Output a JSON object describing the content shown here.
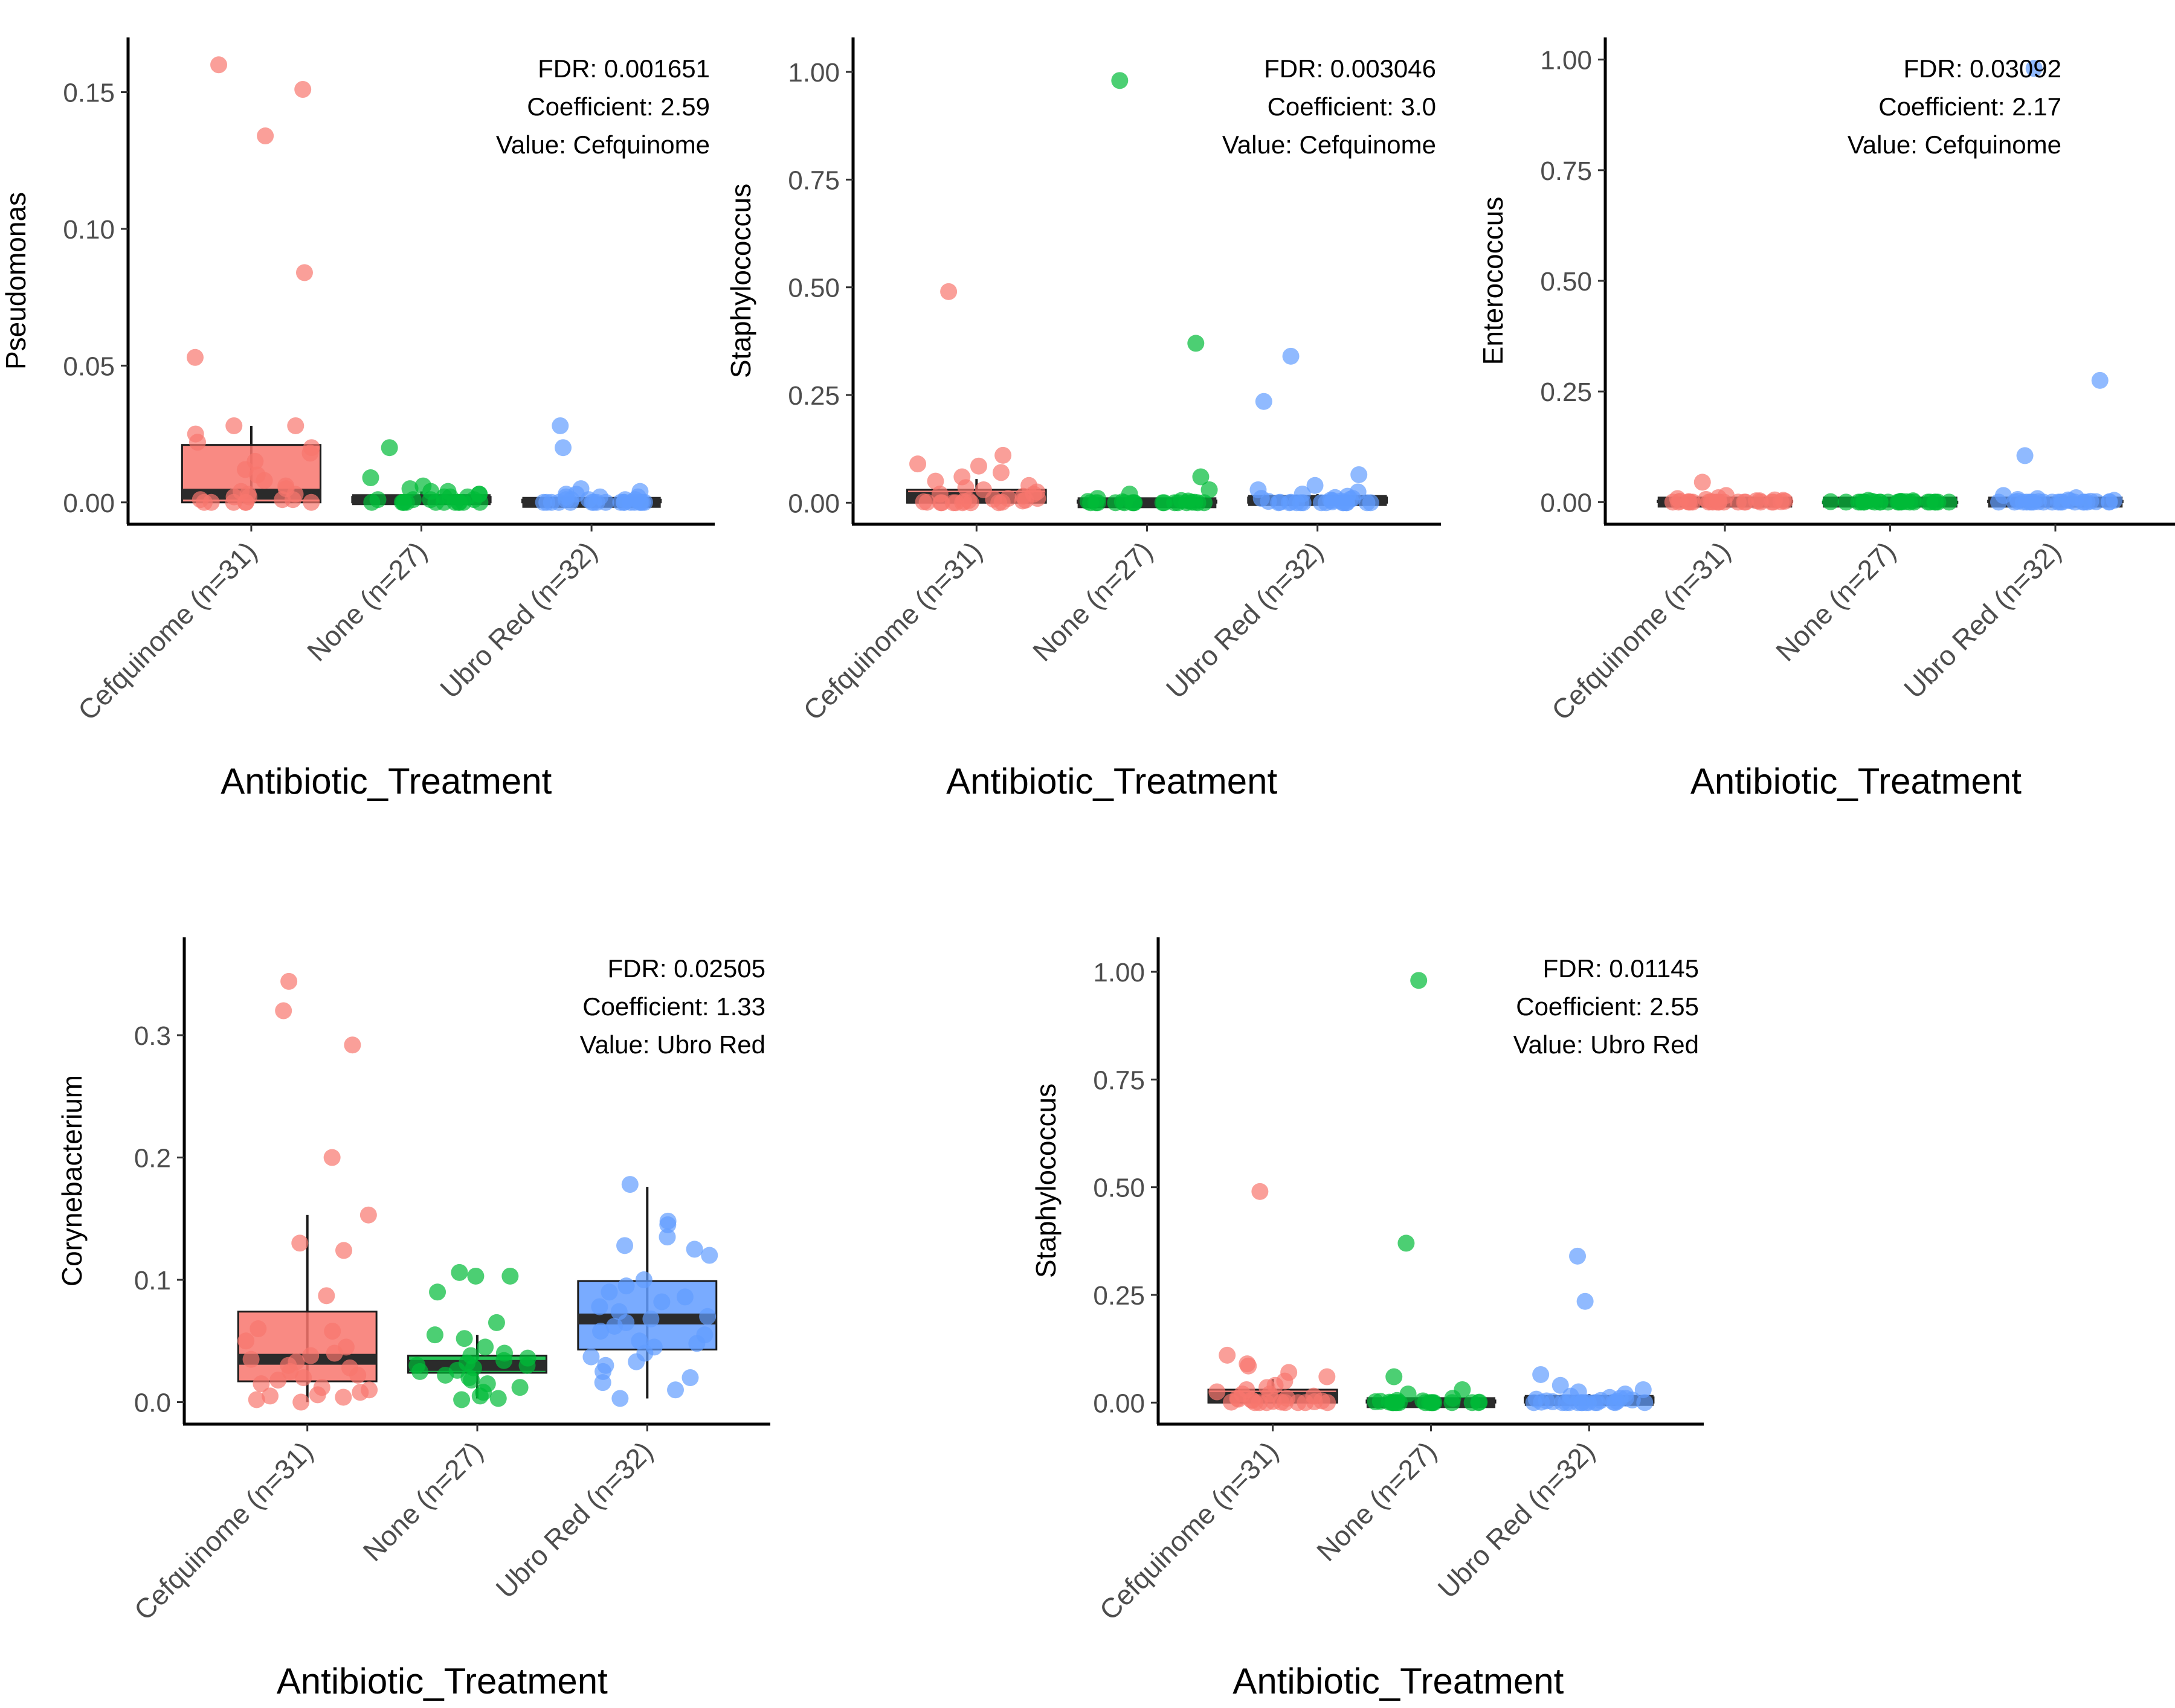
{
  "colors": {
    "Cefquinome": "#F8766D",
    "None": "#00BA38",
    "Ubro Red": "#619CFF",
    "median": "#2b2b2b",
    "axis": "#000000"
  },
  "chart_data": [
    {
      "type": "box",
      "title": "",
      "xlabel": "Antibiotic_Treatment",
      "ylabel": "Pseudomonas",
      "ylim": [
        -0.008,
        0.17
      ],
      "yticks": [
        0.0,
        0.05,
        0.1,
        0.15
      ],
      "ytick_labels": [
        "0.00",
        "0.05",
        "0.10",
        "0.15"
      ],
      "categories": [
        "Cefquinome (n=31)",
        "None (n=27)",
        "Ubro Red (n=32)"
      ],
      "annotations": [
        "FDR: 0.001651",
        "Coefficient: 2.59",
        "Value: Cefquinome"
      ],
      "series": [
        {
          "name": "Cefquinome",
          "box": {
            "q1": 0.0,
            "median": 0.003,
            "q3": 0.021,
            "whisker_low": 0.0,
            "whisker_high": 0.028
          },
          "points": [
            0.16,
            0.151,
            0.134,
            0.084,
            0.053,
            0.028,
            0.028,
            0.025,
            0.022,
            0.02,
            0.018,
            0.015,
            0.012,
            0.01,
            0.008,
            0.006,
            0.005,
            0.004,
            0.003,
            0.003,
            0.002,
            0.002,
            0.001,
            0.001,
            0.001,
            0.0,
            0.0,
            0.0,
            0.0,
            0.0,
            0.0
          ]
        },
        {
          "name": "None",
          "box": {
            "q1": 0.0,
            "median": 0.001,
            "q3": 0.002,
            "whisker_low": 0.0,
            "whisker_high": 0.004
          },
          "points": [
            0.02,
            0.009,
            0.006,
            0.005,
            0.004,
            0.004,
            0.003,
            0.003,
            0.002,
            0.002,
            0.002,
            0.001,
            0.001,
            0.001,
            0.001,
            0.0,
            0.0,
            0.0,
            0.0,
            0.0,
            0.0,
            0.0,
            0.0,
            0.0,
            0.0,
            0.0,
            0.0
          ]
        },
        {
          "name": "Ubro Red",
          "box": {
            "q1": 0.0,
            "median": 0.0,
            "q3": 0.001,
            "whisker_low": 0.0,
            "whisker_high": 0.002
          },
          "points": [
            0.028,
            0.02,
            0.005,
            0.004,
            0.003,
            0.003,
            0.002,
            0.002,
            0.002,
            0.001,
            0.001,
            0.001,
            0.001,
            0.001,
            0.0,
            0.0,
            0.0,
            0.0,
            0.0,
            0.0,
            0.0,
            0.0,
            0.0,
            0.0,
            0.0,
            0.0,
            0.0,
            0.0,
            0.0,
            0.0,
            0.0,
            0.0
          ]
        }
      ]
    },
    {
      "type": "box",
      "title": "",
      "xlabel": "Antibiotic_Treatment",
      "ylabel": "Staphylococcus",
      "ylim": [
        -0.05,
        1.08
      ],
      "yticks": [
        0.0,
        0.25,
        0.5,
        0.75,
        1.0
      ],
      "ytick_labels": [
        "0.00",
        "0.25",
        "0.50",
        "0.75",
        "1.00"
      ],
      "categories": [
        "Cefquinome (n=31)",
        "None (n=27)",
        "Ubro Red (n=32)"
      ],
      "annotations": [
        "FDR: 0.003046",
        "Coefficient: 3.0",
        "Value: Cefquinome"
      ],
      "series": [
        {
          "name": "Cefquinome",
          "box": {
            "q1": 0.0,
            "median": 0.012,
            "q3": 0.03,
            "whisker_low": 0.0,
            "whisker_high": 0.055
          },
          "points": [
            0.49,
            0.11,
            0.09,
            0.085,
            0.07,
            0.06,
            0.05,
            0.04,
            0.035,
            0.03,
            0.025,
            0.02,
            0.02,
            0.015,
            0.01,
            0.01,
            0.008,
            0.006,
            0.005,
            0.004,
            0.003,
            0.002,
            0.001,
            0.001,
            0.0,
            0.0,
            0.0,
            0.0,
            0.0,
            0.0,
            0.0
          ]
        },
        {
          "name": "None",
          "box": {
            "q1": 0.0,
            "median": 0.0,
            "q3": 0.005,
            "whisker_low": 0.0,
            "whisker_high": 0.01
          },
          "points": [
            0.98,
            0.37,
            0.06,
            0.03,
            0.02,
            0.01,
            0.005,
            0.004,
            0.003,
            0.002,
            0.001,
            0.001,
            0.0,
            0.0,
            0.0,
            0.0,
            0.0,
            0.0,
            0.0,
            0.0,
            0.0,
            0.0,
            0.0,
            0.0,
            0.0,
            0.0,
            0.0
          ]
        },
        {
          "name": "Ubro Red",
          "box": {
            "q1": 0.0,
            "median": 0.005,
            "q3": 0.012,
            "whisker_low": 0.0,
            "whisker_high": 0.02
          },
          "points": [
            0.34,
            0.235,
            0.065,
            0.04,
            0.03,
            0.025,
            0.02,
            0.015,
            0.012,
            0.01,
            0.01,
            0.008,
            0.006,
            0.005,
            0.004,
            0.003,
            0.002,
            0.001,
            0.001,
            0.0,
            0.0,
            0.0,
            0.0,
            0.0,
            0.0,
            0.0,
            0.0,
            0.0,
            0.0,
            0.0,
            0.0,
            0.0
          ]
        }
      ]
    },
    {
      "type": "box",
      "title": "",
      "xlabel": "Antibiotic_Treatment",
      "ylabel": "Enterococcus",
      "ylim": [
        -0.05,
        1.05
      ],
      "yticks": [
        0.0,
        0.25,
        0.5,
        0.75,
        1.0
      ],
      "ytick_labels": [
        "0.00",
        "0.25",
        "0.50",
        "0.75",
        "1.00"
      ],
      "categories": [
        "Cefquinome (n=31)",
        "None (n=27)",
        "Ubro Red (n=32)"
      ],
      "annotations": [
        "FDR: 0.03092",
        "Coefficient: 2.17",
        "Value: Cefquinome"
      ],
      "series": [
        {
          "name": "Cefquinome",
          "box": {
            "q1": 0.0,
            "median": 0.0,
            "q3": 0.003,
            "whisker_low": 0.0,
            "whisker_high": 0.006
          },
          "points": [
            0.045,
            0.015,
            0.01,
            0.008,
            0.006,
            0.005,
            0.004,
            0.003,
            0.003,
            0.002,
            0.002,
            0.001,
            0.001,
            0.001,
            0.0,
            0.0,
            0.0,
            0.0,
            0.0,
            0.0,
            0.0,
            0.0,
            0.0,
            0.0,
            0.0,
            0.0,
            0.0,
            0.0,
            0.0,
            0.0,
            0.0
          ]
        },
        {
          "name": "None",
          "box": {
            "q1": 0.0,
            "median": 0.0,
            "q3": 0.001,
            "whisker_low": 0.0,
            "whisker_high": 0.002
          },
          "points": [
            0.004,
            0.003,
            0.002,
            0.002,
            0.001,
            0.001,
            0.001,
            0.0,
            0.0,
            0.0,
            0.0,
            0.0,
            0.0,
            0.0,
            0.0,
            0.0,
            0.0,
            0.0,
            0.0,
            0.0,
            0.0,
            0.0,
            0.0,
            0.0,
            0.0,
            0.0,
            0.0
          ]
        },
        {
          "name": "Ubro Red",
          "box": {
            "q1": 0.0,
            "median": 0.0,
            "q3": 0.003,
            "whisker_low": 0.0,
            "whisker_high": 0.006
          },
          "points": [
            0.98,
            0.275,
            0.105,
            0.015,
            0.01,
            0.008,
            0.006,
            0.005,
            0.004,
            0.003,
            0.002,
            0.002,
            0.001,
            0.001,
            0.001,
            0.0,
            0.0,
            0.0,
            0.0,
            0.0,
            0.0,
            0.0,
            0.0,
            0.0,
            0.0,
            0.0,
            0.0,
            0.0,
            0.0,
            0.0,
            0.0,
            0.0
          ]
        }
      ]
    },
    {
      "type": "box",
      "title": "",
      "xlabel": "Antibiotic_Treatment",
      "ylabel": "Corynebacterium",
      "ylim": [
        -0.018,
        0.38
      ],
      "yticks": [
        0.0,
        0.1,
        0.2,
        0.3
      ],
      "ytick_labels": [
        "0.0",
        "0.1",
        "0.2",
        "0.3"
      ],
      "categories": [
        "Cefquinome (n=31)",
        "None (n=27)",
        "Ubro Red (n=32)"
      ],
      "annotations": [
        "FDR: 0.02505",
        "Coefficient: 1.33",
        "Value: Ubro Red"
      ],
      "series": [
        {
          "name": "Cefquinome",
          "box": {
            "q1": 0.017,
            "median": 0.035,
            "q3": 0.074,
            "whisker_low": 0.0,
            "whisker_high": 0.153
          },
          "points": [
            0.344,
            0.32,
            0.292,
            0.2,
            0.153,
            0.13,
            0.124,
            0.087,
            0.06,
            0.058,
            0.05,
            0.045,
            0.04,
            0.038,
            0.035,
            0.033,
            0.03,
            0.028,
            0.025,
            0.022,
            0.02,
            0.018,
            0.015,
            0.012,
            0.01,
            0.008,
            0.006,
            0.005,
            0.004,
            0.002,
            0.0
          ]
        },
        {
          "name": "None",
          "box": {
            "q1": 0.024,
            "median": 0.03,
            "q3": 0.038,
            "whisker_low": 0.003,
            "whisker_high": 0.055
          },
          "points": [
            0.106,
            0.103,
            0.103,
            0.09,
            0.065,
            0.055,
            0.052,
            0.045,
            0.04,
            0.038,
            0.036,
            0.034,
            0.032,
            0.03,
            0.03,
            0.028,
            0.026,
            0.025,
            0.022,
            0.02,
            0.018,
            0.015,
            0.012,
            0.008,
            0.005,
            0.003,
            0.002
          ]
        },
        {
          "name": "Ubro Red",
          "box": {
            "q1": 0.043,
            "median": 0.068,
            "q3": 0.099,
            "whisker_low": 0.003,
            "whisker_high": 0.176
          },
          "points": [
            0.178,
            0.148,
            0.145,
            0.135,
            0.128,
            0.125,
            0.12,
            0.1,
            0.095,
            0.09,
            0.086,
            0.082,
            0.078,
            0.074,
            0.07,
            0.068,
            0.065,
            0.062,
            0.058,
            0.055,
            0.05,
            0.048,
            0.045,
            0.04,
            0.037,
            0.033,
            0.03,
            0.025,
            0.02,
            0.016,
            0.01,
            0.003
          ]
        }
      ]
    },
    {
      "type": "box",
      "title": "",
      "xlabel": "Antibiotic_Treatment",
      "ylabel": "Staphylococcus",
      "ylim": [
        -0.05,
        1.08
      ],
      "yticks": [
        0.0,
        0.25,
        0.5,
        0.75,
        1.0
      ],
      "ytick_labels": [
        "0.00",
        "0.25",
        "0.50",
        "0.75",
        "1.00"
      ],
      "categories": [
        "Cefquinome (n=31)",
        "None (n=27)",
        "Ubro Red (n=32)"
      ],
      "annotations": [
        "FDR: 0.01145",
        "Coefficient: 2.55",
        "Value: Ubro Red"
      ],
      "series": [
        {
          "name": "Cefquinome",
          "box": {
            "q1": 0.0,
            "median": 0.012,
            "q3": 0.03,
            "whisker_low": 0.0,
            "whisker_high": 0.055
          },
          "points": [
            0.49,
            0.11,
            0.09,
            0.085,
            0.07,
            0.06,
            0.05,
            0.04,
            0.035,
            0.03,
            0.025,
            0.02,
            0.02,
            0.015,
            0.01,
            0.01,
            0.008,
            0.006,
            0.005,
            0.004,
            0.003,
            0.002,
            0.001,
            0.001,
            0.0,
            0.0,
            0.0,
            0.0,
            0.0,
            0.0,
            0.0
          ]
        },
        {
          "name": "None",
          "box": {
            "q1": 0.0,
            "median": 0.0,
            "q3": 0.005,
            "whisker_low": 0.0,
            "whisker_high": 0.01
          },
          "points": [
            0.98,
            0.37,
            0.06,
            0.03,
            0.02,
            0.01,
            0.005,
            0.004,
            0.003,
            0.002,
            0.001,
            0.001,
            0.0,
            0.0,
            0.0,
            0.0,
            0.0,
            0.0,
            0.0,
            0.0,
            0.0,
            0.0,
            0.0,
            0.0,
            0.0,
            0.0,
            0.0
          ]
        },
        {
          "name": "Ubro Red",
          "box": {
            "q1": 0.0,
            "median": 0.005,
            "q3": 0.012,
            "whisker_low": 0.0,
            "whisker_high": 0.02
          },
          "points": [
            0.34,
            0.235,
            0.065,
            0.04,
            0.03,
            0.025,
            0.02,
            0.015,
            0.012,
            0.01,
            0.01,
            0.008,
            0.006,
            0.005,
            0.004,
            0.003,
            0.002,
            0.001,
            0.001,
            0.0,
            0.0,
            0.0,
            0.0,
            0.0,
            0.0,
            0.0,
            0.0,
            0.0,
            0.0,
            0.0,
            0.0,
            0.0
          ]
        }
      ]
    }
  ]
}
